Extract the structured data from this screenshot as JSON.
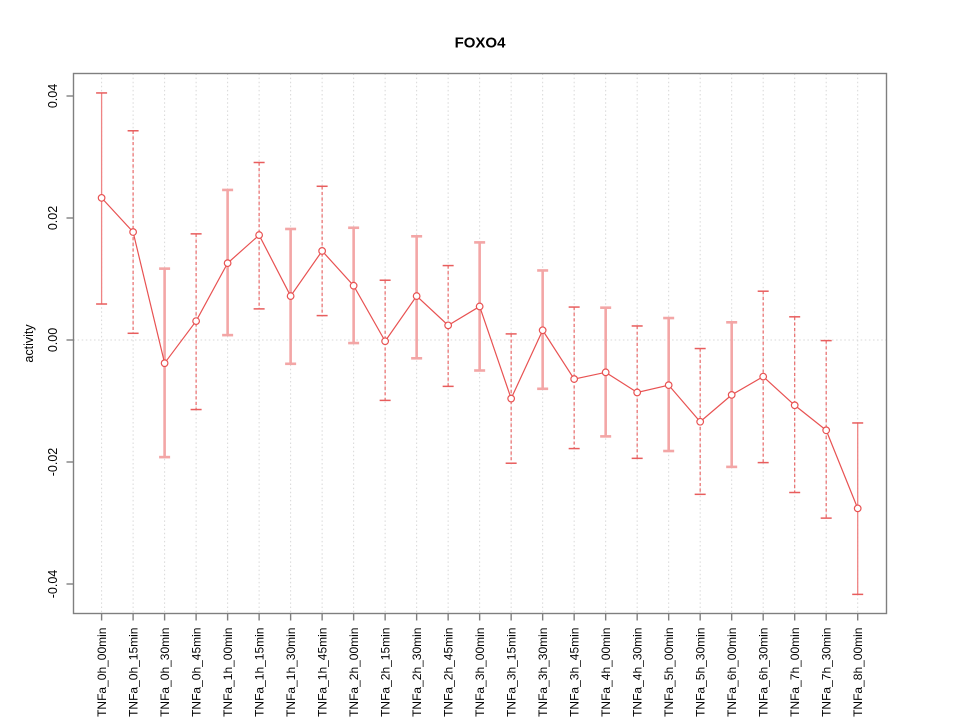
{
  "chart_data": {
    "type": "line",
    "title": "FOXO4",
    "xlabel": "",
    "ylabel": "activity",
    "ytick_labels": [
      "-0.04",
      "-0.02",
      "0.00",
      "0.02",
      "0.04"
    ],
    "ytick_values": [
      -0.04,
      -0.02,
      0.0,
      0.02,
      0.04
    ],
    "ylim": [
      -0.0448,
      0.0438
    ],
    "grid": {
      "vertical_dotted": true,
      "horizontal_zero_dotted": true,
      "legend": "none"
    },
    "colors": {
      "series_line": "#e85252",
      "marker_stroke": "#e85252",
      "errorbar_wide": "#f3a6a6",
      "errorbar_thin_solid": "#ef8484",
      "errorbar_dashed": "#e96a6a",
      "errorbar_cap": "#e85d5d",
      "grid_line": "#d8d8d8",
      "axis_box": "#7f7f7f",
      "background": "#ffffff"
    },
    "categories": [
      "TNFa_0h_00min",
      "TNFa_0h_15min",
      "TNFa_0h_30min",
      "TNFa_0h_45min",
      "TNFa_1h_00min",
      "TNFa_1h_15min",
      "TNFa_1h_30min",
      "TNFa_1h_45min",
      "TNFa_2h_00min",
      "TNFa_2h_15min",
      "TNFa_2h_30min",
      "TNFa_2h_45min",
      "TNFa_3h_00min",
      "TNFa_3h_15min",
      "TNFa_3h_30min",
      "TNFa_3h_45min",
      "TNFa_4h_00min",
      "TNFa_4h_30min",
      "TNFa_5h_00min",
      "TNFa_5h_30min",
      "TNFa_6h_00min",
      "TNFa_6h_30min",
      "TNFa_7h_00min",
      "TNFa_7h_30min",
      "TNFa_8h_00min"
    ],
    "series": [
      {
        "name": "activity",
        "values": [
          0.0233,
          0.0177,
          -0.0038,
          0.0031,
          0.0126,
          0.0172,
          0.0072,
          0.0146,
          0.0089,
          -0.0002,
          0.0072,
          0.0024,
          0.0055,
          -0.0096,
          0.0016,
          -0.0064,
          -0.0053,
          -0.0086,
          -0.0074,
          -0.0134,
          -0.009,
          -0.006,
          -0.0107,
          -0.0148,
          -0.0276
        ],
        "ci_low": [
          0.0059,
          0.0011,
          -0.0192,
          -0.0114,
          0.0008,
          0.0051,
          -0.0039,
          0.004,
          -0.0005,
          -0.0099,
          -0.003,
          -0.0076,
          -0.005,
          -0.0202,
          -0.008,
          -0.0178,
          -0.0158,
          -0.0194,
          -0.0182,
          -0.0253,
          -0.0208,
          -0.0201,
          -0.025,
          -0.0292,
          -0.0417
        ],
        "ci_high": [
          0.0405,
          0.0343,
          0.0117,
          0.0174,
          0.0246,
          0.0291,
          0.0182,
          0.0252,
          0.0184,
          0.0098,
          0.017,
          0.0122,
          0.016,
          0.001,
          0.0114,
          0.0054,
          0.0053,
          0.0023,
          0.0036,
          -0.0014,
          0.0029,
          0.008,
          0.0038,
          -0.0001,
          -0.0136
        ],
        "bar_styles": [
          "solid",
          "dashed",
          "wide",
          "dashed",
          "wide",
          "dashed",
          "wide",
          "dashed",
          "wide",
          "dashed",
          "wide",
          "dashed",
          "wide",
          "dashed",
          "wide",
          "dashed",
          "wide",
          "dashed",
          "wide",
          "dashed",
          "wide",
          "dashed",
          "dashed",
          "dashed",
          "solid"
        ]
      }
    ]
  }
}
